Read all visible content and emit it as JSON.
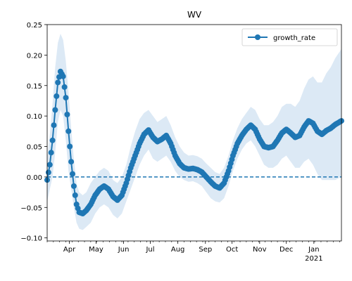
{
  "chart_data": {
    "type": "line",
    "title": "WV",
    "xlabel": "",
    "ylabel": "",
    "x_range": [
      "2020-03-07",
      "2021-02-01"
    ],
    "ylim": [
      -0.105,
      0.25
    ],
    "y_ticks": [
      -0.1,
      -0.05,
      0.0,
      0.05,
      0.1,
      0.15,
      0.2,
      0.25
    ],
    "y_tick_labels": [
      "−0.10",
      "−0.05",
      "0.00",
      "0.05",
      "0.10",
      "0.15",
      "0.20",
      "0.25"
    ],
    "x_ticks": [
      {
        "date": "2020-04-01",
        "label": "Apr"
      },
      {
        "date": "2020-05-01",
        "label": "May"
      },
      {
        "date": "2020-06-01",
        "label": "Jun"
      },
      {
        "date": "2020-07-01",
        "label": "Jul"
      },
      {
        "date": "2020-08-01",
        "label": "Aug"
      },
      {
        "date": "2020-09-01",
        "label": "Sep"
      },
      {
        "date": "2020-10-01",
        "label": "Oct"
      },
      {
        "date": "2020-11-01",
        "label": "Nov"
      },
      {
        "date": "2020-12-01",
        "label": "Dec"
      },
      {
        "date": "2021-01-01",
        "label": "Jan",
        "sublabel": "2021"
      }
    ],
    "grid": false,
    "legend": {
      "position": "top-right",
      "entries": [
        "growth_rate"
      ]
    },
    "reference_line": {
      "y": 0.0,
      "style": "dashed",
      "color": "#1f77b4"
    },
    "series": [
      {
        "name": "growth_rate",
        "color": "#1f77b4",
        "band_color": "#dce9f5",
        "points": [
          [
            "2020-03-07",
            -0.005,
            -0.04,
            0.03
          ],
          [
            "2020-03-10",
            0.02,
            -0.02,
            0.07
          ],
          [
            "2020-03-13",
            0.06,
            0.0,
            0.12
          ],
          [
            "2020-03-16",
            0.11,
            0.04,
            0.18
          ],
          [
            "2020-03-19",
            0.155,
            0.09,
            0.22
          ],
          [
            "2020-03-22",
            0.173,
            0.11,
            0.235
          ],
          [
            "2020-03-25",
            0.165,
            0.1,
            0.225
          ],
          [
            "2020-03-28",
            0.13,
            0.06,
            0.19
          ],
          [
            "2020-03-31",
            0.075,
            0.01,
            0.14
          ],
          [
            "2020-04-03",
            0.025,
            -0.02,
            0.08
          ],
          [
            "2020-04-06",
            -0.015,
            -0.05,
            0.03
          ],
          [
            "2020-04-09",
            -0.045,
            -0.075,
            -0.01
          ],
          [
            "2020-04-12",
            -0.058,
            -0.085,
            -0.025
          ],
          [
            "2020-04-16",
            -0.06,
            -0.087,
            -0.03
          ],
          [
            "2020-04-20",
            -0.055,
            -0.082,
            -0.025
          ],
          [
            "2020-04-25",
            -0.045,
            -0.075,
            -0.01
          ],
          [
            "2020-04-30",
            -0.03,
            -0.06,
            0.0
          ],
          [
            "2020-05-05",
            -0.02,
            -0.05,
            0.01
          ],
          [
            "2020-05-10",
            -0.015,
            -0.045,
            0.015
          ],
          [
            "2020-05-15",
            -0.02,
            -0.05,
            0.01
          ],
          [
            "2020-05-20",
            -0.032,
            -0.062,
            -0.005
          ],
          [
            "2020-05-25",
            -0.038,
            -0.068,
            -0.01
          ],
          [
            "2020-05-30",
            -0.03,
            -0.06,
            0.0
          ],
          [
            "2020-06-04",
            -0.01,
            -0.04,
            0.02
          ],
          [
            "2020-06-09",
            0.015,
            -0.02,
            0.05
          ],
          [
            "2020-06-14",
            0.035,
            0.0,
            0.075
          ],
          [
            "2020-06-19",
            0.055,
            0.02,
            0.095
          ],
          [
            "2020-06-24",
            0.07,
            0.035,
            0.105
          ],
          [
            "2020-06-29",
            0.077,
            0.045,
            0.11
          ],
          [
            "2020-07-04",
            0.065,
            0.03,
            0.1
          ],
          [
            "2020-07-09",
            0.058,
            0.025,
            0.09
          ],
          [
            "2020-07-14",
            0.062,
            0.03,
            0.095
          ],
          [
            "2020-07-19",
            0.068,
            0.035,
            0.1
          ],
          [
            "2020-07-24",
            0.055,
            0.025,
            0.085
          ],
          [
            "2020-07-29",
            0.035,
            0.01,
            0.065
          ],
          [
            "2020-08-03",
            0.022,
            0.0,
            0.05
          ],
          [
            "2020-08-08",
            0.015,
            -0.005,
            0.04
          ],
          [
            "2020-08-13",
            0.013,
            -0.008,
            0.035
          ],
          [
            "2020-08-18",
            0.014,
            -0.007,
            0.036
          ],
          [
            "2020-08-23",
            0.012,
            -0.01,
            0.034
          ],
          [
            "2020-08-28",
            0.008,
            -0.015,
            0.03
          ],
          [
            "2020-09-02",
            0.0,
            -0.025,
            0.022
          ],
          [
            "2020-09-07",
            -0.008,
            -0.035,
            0.015
          ],
          [
            "2020-09-12",
            -0.015,
            -0.04,
            0.008
          ],
          [
            "2020-09-17",
            -0.018,
            -0.042,
            0.005
          ],
          [
            "2020-09-22",
            -0.01,
            -0.035,
            0.015
          ],
          [
            "2020-09-27",
            0.01,
            -0.015,
            0.035
          ],
          [
            "2020-10-02",
            0.035,
            0.01,
            0.06
          ],
          [
            "2020-10-07",
            0.055,
            0.03,
            0.08
          ],
          [
            "2020-10-12",
            0.068,
            0.045,
            0.095
          ],
          [
            "2020-10-17",
            0.078,
            0.055,
            0.105
          ],
          [
            "2020-10-22",
            0.085,
            0.06,
            0.115
          ],
          [
            "2020-10-27",
            0.078,
            0.05,
            0.11
          ],
          [
            "2020-11-01",
            0.062,
            0.035,
            0.095
          ],
          [
            "2020-11-06",
            0.05,
            0.02,
            0.085
          ],
          [
            "2020-11-11",
            0.048,
            0.015,
            0.085
          ],
          [
            "2020-11-16",
            0.05,
            0.015,
            0.09
          ],
          [
            "2020-11-21",
            0.06,
            0.02,
            0.1
          ],
          [
            "2020-11-26",
            0.072,
            0.03,
            0.115
          ],
          [
            "2020-12-01",
            0.078,
            0.035,
            0.12
          ],
          [
            "2020-12-06",
            0.072,
            0.025,
            0.12
          ],
          [
            "2020-12-11",
            0.065,
            0.015,
            0.115
          ],
          [
            "2020-12-16",
            0.068,
            0.015,
            0.125
          ],
          [
            "2020-12-21",
            0.082,
            0.025,
            0.145
          ],
          [
            "2020-12-26",
            0.092,
            0.03,
            0.16
          ],
          [
            "2020-12-31",
            0.088,
            0.02,
            0.165
          ],
          [
            "2021-01-05",
            0.075,
            0.005,
            0.155
          ],
          [
            "2021-01-10",
            0.07,
            -0.005,
            0.155
          ],
          [
            "2021-01-15",
            0.076,
            -0.005,
            0.17
          ],
          [
            "2021-01-20",
            0.08,
            -0.005,
            0.18
          ],
          [
            "2021-01-25",
            0.086,
            -0.005,
            0.195
          ],
          [
            "2021-02-01",
            0.092,
            0.0,
            0.21
          ]
        ]
      }
    ]
  }
}
